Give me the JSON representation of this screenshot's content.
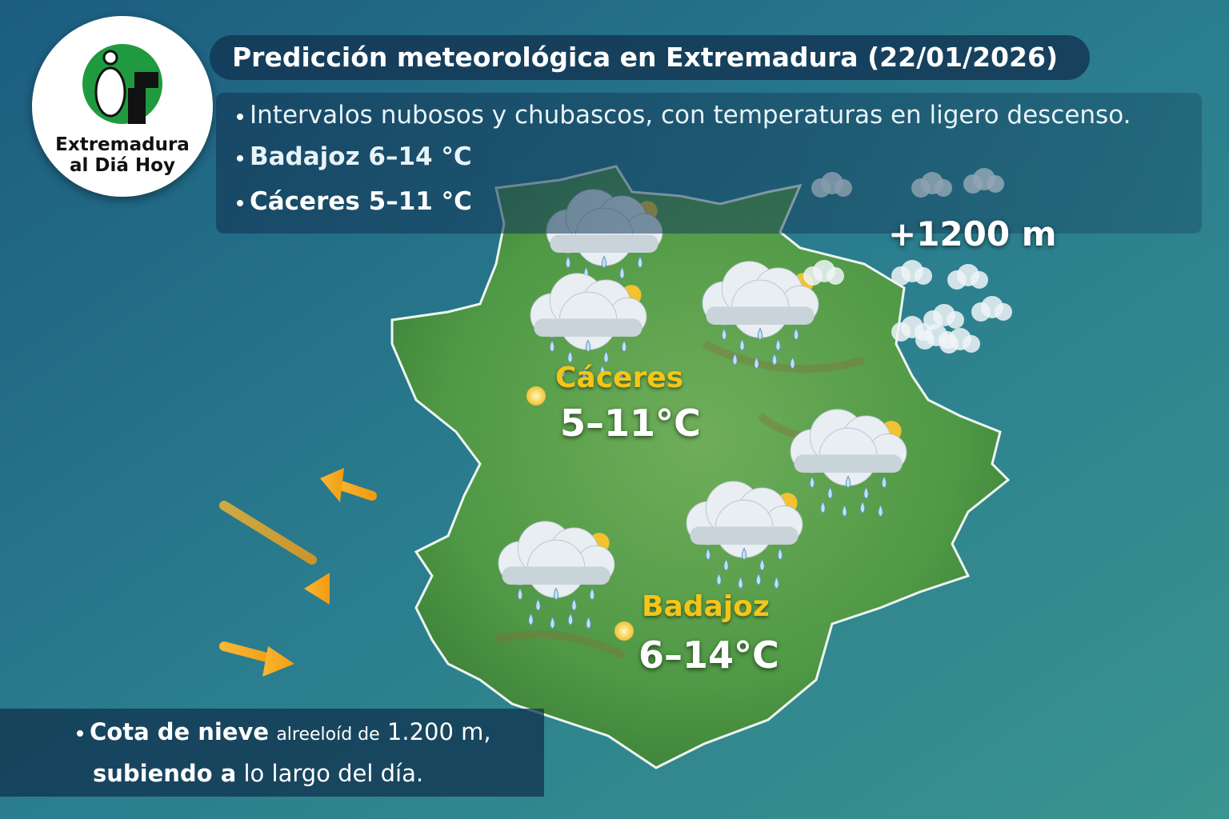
{
  "logo": {
    "line1": "Extremadura",
    "line2": "al Diá Hoy"
  },
  "header": {
    "title": "Predicción meteorológica en Extremadura (22/01/2026)"
  },
  "summary": [
    "Intervalos nubosos y chubascos, con temperaturas en ligero descenso.",
    "Badajoz 6–14 °C",
    "Cáceres 5–11 °C"
  ],
  "map": {
    "cities": [
      {
        "name": "Cáceres",
        "temperature": "5–11°C"
      },
      {
        "name": "Badajoz",
        "temperature": "6–14°C"
      }
    ],
    "snow_label": "+1200 m"
  },
  "footer": {
    "line1": [
      "Cota de nieve",
      "alreeloíd de",
      "1.200 m,"
    ],
    "line2": [
      "subiendo a",
      "lo largo del día."
    ]
  }
}
